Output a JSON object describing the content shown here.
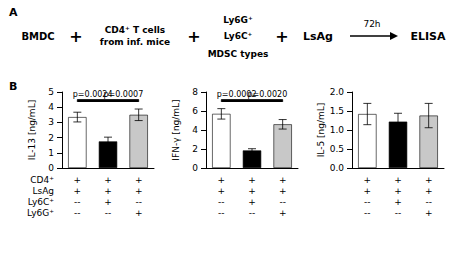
{
  "chart_data": [
    {
      "type": "diagram",
      "title": "A",
      "annotations": [
        "BMDC",
        "+",
        "CD4⁺ T cells\nfrom inf. mice",
        "+",
        "Ly6G⁺",
        "Ly6C⁺",
        "MDSC types",
        "+",
        "LsAg",
        "72h",
        "ELISA"
      ]
    },
    {
      "type": "bar",
      "title": "B",
      "ylabel": "IL-13 [ng/mL]",
      "xlabel": "CD4⁺\nLsAg\nLy6C⁺\nLy6G⁺",
      "categories": [
        "+\n+\n--\n--",
        "+\n+\n+\n--",
        "+\n+\n--\n+"
      ],
      "values": [
        3.35,
        1.75,
        3.5
      ],
      "errors": [
        0.32,
        0.28,
        0.38
      ],
      "colors": [
        "white",
        "black",
        "#c8c8c8"
      ],
      "ylim": [
        0,
        5
      ],
      "yticks": [
        0,
        1,
        2,
        3,
        4,
        5
      ],
      "annotations": [
        "p=0.0024",
        "p=0.0007"
      ],
      "grid": false
    },
    {
      "type": "bar",
      "ylabel": "IFN-γ [ng/mL]",
      "categories": [
        "+\n+\n--\n--",
        "+\n+\n+\n--",
        "+\n+\n--\n+"
      ],
      "values": [
        5.7,
        1.85,
        4.6
      ],
      "errors": [
        0.55,
        0.18,
        0.5
      ],
      "colors": [
        "white",
        "black",
        "#c8c8c8"
      ],
      "ylim": [
        0,
        8
      ],
      "yticks": [
        0,
        2,
        4,
        6,
        8
      ],
      "annotations": [
        "p=0.0002",
        "p=0.0020"
      ],
      "grid": false
    },
    {
      "type": "bar",
      "ylabel": "IL-5 [ng/mL]",
      "categories": [
        "+\n+\n--\n--",
        "+\n+\n+\n--",
        "+\n+\n--\n+"
      ],
      "values": [
        1.42,
        1.22,
        1.38
      ],
      "errors": [
        0.28,
        0.22,
        0.32
      ],
      "colors": [
        "white",
        "black",
        "#c8c8c8"
      ],
      "ylim": [
        0.0,
        2.0
      ],
      "yticks": [
        {
          "value": 0,
          "label": "0.0"
        },
        0.5,
        {
          "value": 1,
          "label": "1.0"
        },
        1.5,
        {
          "value": 2,
          "label": "2.0"
        }
      ],
      "grid": false
    }
  ]
}
